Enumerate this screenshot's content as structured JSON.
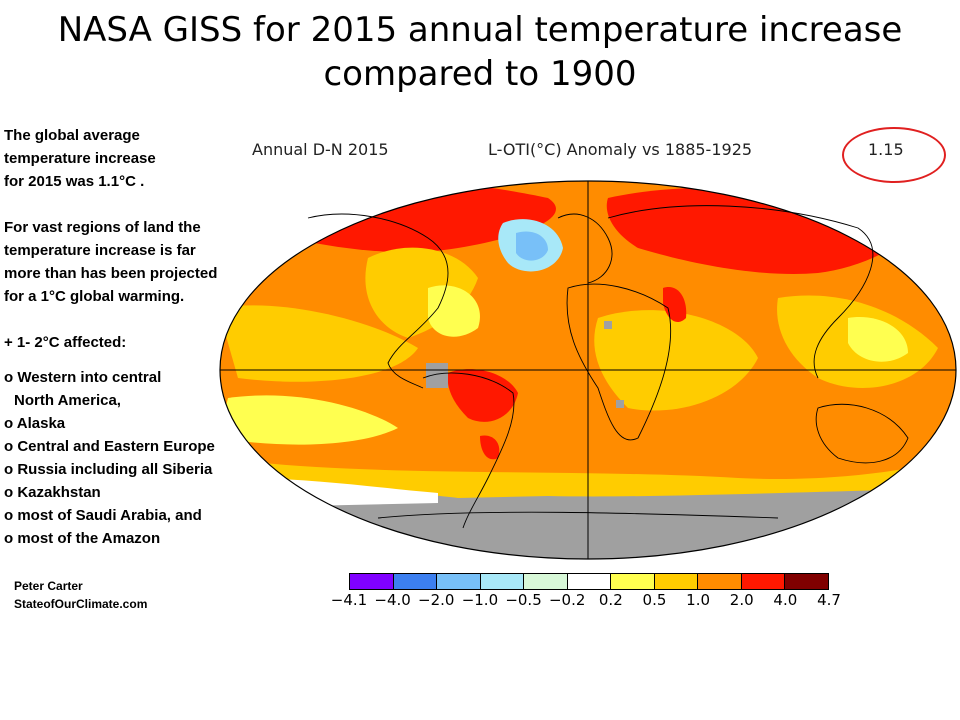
{
  "title": {
    "line1": "NASA GISS for 2015 annual  temperature increase",
    "line2": "compared to 1900"
  },
  "left_text": {
    "para1": [
      "The global average",
      "temperature  increase",
      "for 2015 was 1.1°C ."
    ],
    "para2": [
      "For vast regions of land the",
      "temperature increase is far",
      "more than has been projected",
      "for a  1°C global warming."
    ],
    "affected_heading": "+ 1- 2°C affected:",
    "items": [
      "o Western into central",
      "North America,",
      "o Alaska",
      "o Central and Eastern Europe",
      "o Russia including all Siberia",
      "o Kazakhstan",
      "o most of Saudi Arabia, and",
      "o most of the Amazon"
    ]
  },
  "credit": {
    "name": "Peter Carter",
    "site": "StateofOurClimate.com"
  },
  "map": {
    "header_left": "Annual D-N 2015",
    "header_center": "L-OTI(°C) Anomaly vs 1885-1925",
    "header_value": "1.15"
  },
  "legend": {
    "colors": [
      "#8000ff",
      "#3c7ff0",
      "#78c0f8",
      "#a8e8f8",
      "#d8f8d8",
      "#ffffff",
      "#ffff50",
      "#ffcc00",
      "#ff8c00",
      "#ff1800",
      "#800000"
    ],
    "labels": [
      "−4.1",
      "−4.0",
      "−2.0",
      "−1.0",
      "−0.5",
      "−0.2",
      "0.2",
      "0.5",
      "1.0",
      "2.0",
      "4.0",
      "4.7"
    ]
  }
}
